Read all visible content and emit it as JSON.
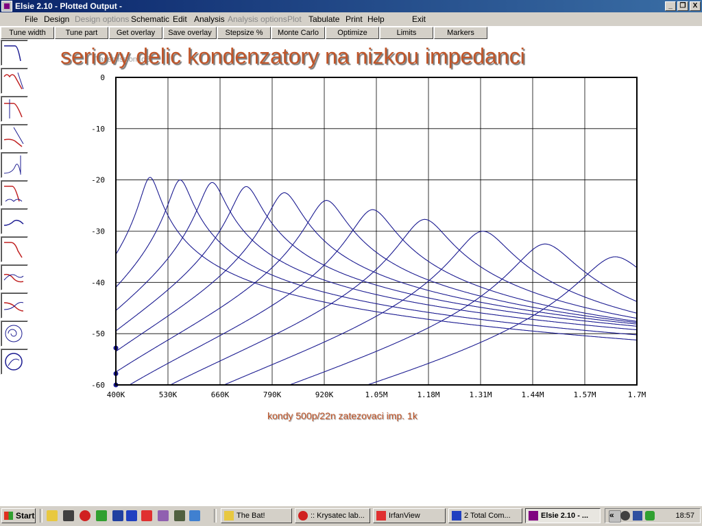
{
  "window": {
    "title": "Elsie 2.10 - Plotted Output -",
    "buttons": [
      "_",
      "❐",
      "X"
    ]
  },
  "menu": {
    "items": [
      {
        "label": "File",
        "enabled": true
      },
      {
        "label": "Design",
        "enabled": true
      },
      {
        "label": "Design options",
        "enabled": false
      },
      {
        "label": "Schematic",
        "enabled": true
      },
      {
        "label": "Edit",
        "enabled": true
      },
      {
        "label": "Analysis",
        "enabled": true
      },
      {
        "label": "Analysis options",
        "enabled": false
      },
      {
        "label": "Plot",
        "enabled": false
      },
      {
        "label": "Tabulate",
        "enabled": true
      },
      {
        "label": "Print",
        "enabled": true
      },
      {
        "label": "Help",
        "enabled": true
      },
      {
        "label": "Exit",
        "enabled": true
      }
    ]
  },
  "toolbar": {
    "buttons": [
      "Tune width",
      "Tune part",
      "Get overlay",
      "Save overlay",
      "Stepsize %",
      "Monte Carlo",
      "Optimize",
      "Limits",
      "Markers"
    ]
  },
  "sidebar": {
    "icons": [
      "lowpass-response-icon",
      "bandpass-ripple-icon",
      "lowpass-red-icon",
      "rolloff-red-icon",
      "phase-curves-icon",
      "multi-response-icon",
      "delay-curve-icon",
      "group-delay-icon",
      "step-response-icon",
      "crossing-curves-icon",
      "smith-spiral-icon",
      "polar-circle-icon"
    ]
  },
  "plot": {
    "title": "seriovy delic kondenzatory na nizkou impedanci",
    "subtitle": "Transmission, dB",
    "caption": "kondy 500p/22n zatezovaci imp. 1k"
  },
  "chart_data": {
    "type": "line",
    "title": "seriovy delic kondenzatory na nizkou impedanci",
    "ylabel": "Transmission, dB",
    "xlabel": "kondy 500p/22n zatezovaci imp. 1k",
    "xlim": [
      400000,
      1700000
    ],
    "ylim": [
      -60,
      0
    ],
    "x_ticks": [
      "400K",
      "530K",
      "660K",
      "790K",
      "920K",
      "1.05M",
      "1.18M",
      "1.31M",
      "1.44M",
      "1.57M",
      "1.7M"
    ],
    "y_ticks": [
      "0",
      "-10",
      "-20",
      "-30",
      "-40",
      "-50",
      "-60"
    ],
    "grid": true,
    "line_color": "#1a1a90",
    "series": [
      {
        "peak_freq": 485000,
        "peak_db": -19.5
      },
      {
        "peak_freq": 560000,
        "peak_db": -20.0
      },
      {
        "peak_freq": 640000,
        "peak_db": -20.5
      },
      {
        "peak_freq": 725000,
        "peak_db": -21.3
      },
      {
        "peak_freq": 820000,
        "peak_db": -22.5
      },
      {
        "peak_freq": 925000,
        "peak_db": -24.0
      },
      {
        "peak_freq": 1040000,
        "peak_db": -25.8
      },
      {
        "peak_freq": 1170000,
        "peak_db": -27.7
      },
      {
        "peak_freq": 1315000,
        "peak_db": -30.0
      },
      {
        "peak_freq": 1470000,
        "peak_db": -32.5
      },
      {
        "peak_freq": 1645000,
        "peak_db": -35.0
      }
    ]
  },
  "taskbar": {
    "start_label": "Start",
    "tasks": [
      {
        "label": "The Bat!",
        "active": false
      },
      {
        "label": ":: Krysatec lab...",
        "active": false
      },
      {
        "label": "IrfanView",
        "active": false
      },
      {
        "label": "2 Total Com...",
        "active": false
      },
      {
        "label": "Elsie 2.10 - ...",
        "active": true
      }
    ],
    "tray_text": "«",
    "clock": "18:57"
  }
}
